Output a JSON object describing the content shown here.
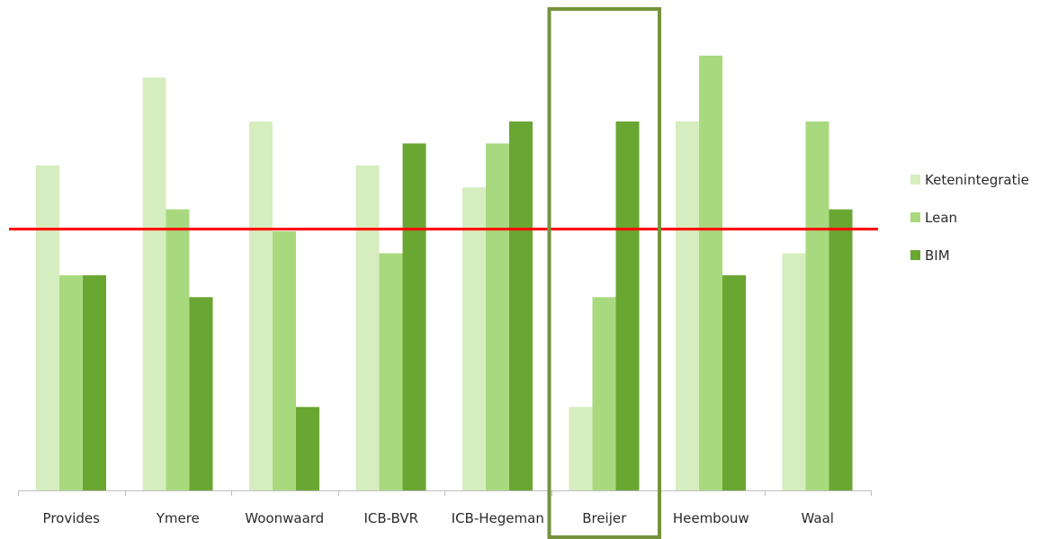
{
  "chart_data": {
    "type": "bar",
    "categories": [
      "Provides",
      "Ymere",
      "Woonwaard",
      "ICB-BVR",
      "ICB-Hegeman",
      "Breijer",
      "Heembouw",
      "Waal"
    ],
    "series": [
      {
        "name": "Ketenintegratie",
        "color": "#d6edbf",
        "values": [
          7.4,
          9.4,
          8.4,
          7.4,
          6.9,
          1.9,
          8.4,
          5.4
        ]
      },
      {
        "name": "Lean",
        "color": "#a9d97e",
        "values": [
          4.9,
          6.4,
          5.9,
          5.4,
          7.9,
          4.4,
          9.9,
          8.4
        ]
      },
      {
        "name": "BIM",
        "color": "#6aa632",
        "values": [
          4.9,
          4.4,
          1.9,
          7.9,
          8.4,
          8.4,
          4.9,
          6.4
        ]
      }
    ],
    "ylim": [
      0,
      10.9
    ],
    "reference_line": {
      "value": 5.95,
      "color": "#ff0000"
    },
    "highlight": {
      "category": "Breijer",
      "color": "#76923c"
    },
    "legend_position": "right"
  }
}
